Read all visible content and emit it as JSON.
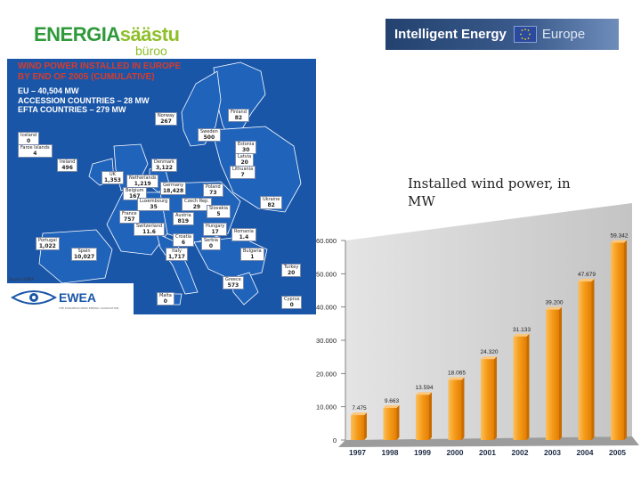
{
  "logos": {
    "energia_main_a": "ENERGIA",
    "energia_main_b": "säästu",
    "energia_sub": "büroo",
    "iee_part1": "Intelligent Energy",
    "iee_part2": "Europe"
  },
  "map": {
    "title_line1": "WIND POWER INSTALLED IN EUROPE",
    "title_line2": "BY END OF 2005 (CUMULATIVE)",
    "stat_eu": "EU – 40,504 MW",
    "stat_accession": "ACCESSION COUNTRIES – 28 MW",
    "stat_efta": "EFTA COUNTRIES – 279 MW",
    "source": "Source: EWEA",
    "ewea_name": "EWEA",
    "ewea_tagline": "THE EUROPEAN WIND ENERGY ASSOCIATION",
    "countries": [
      {
        "name": "Finland",
        "value": "82"
      },
      {
        "name": "Norway",
        "value": "267"
      },
      {
        "name": "Sweden",
        "value": "500"
      },
      {
        "name": "Estonia",
        "value": "30"
      },
      {
        "name": "Latvia",
        "value": "20"
      },
      {
        "name": "Lithuania",
        "value": "7"
      },
      {
        "name": "Iceland",
        "value": "0"
      },
      {
        "name": "Faroe Islands",
        "value": "4"
      },
      {
        "name": "Ireland",
        "value": "496"
      },
      {
        "name": "UK",
        "value": "1,353"
      },
      {
        "name": "Denmark",
        "value": "3,122"
      },
      {
        "name": "Netherlands",
        "value": "1,219"
      },
      {
        "name": "Belgium",
        "value": "167"
      },
      {
        "name": "Germany",
        "value": "18,428"
      },
      {
        "name": "Poland",
        "value": "73"
      },
      {
        "name": "Czech Rep.",
        "value": "29"
      },
      {
        "name": "Slovakia",
        "value": "5"
      },
      {
        "name": "Ukraine",
        "value": "82"
      },
      {
        "name": "Luxembourg",
        "value": "35"
      },
      {
        "name": "France",
        "value": "757"
      },
      {
        "name": "Austria",
        "value": "819"
      },
      {
        "name": "Hungary",
        "value": "17"
      },
      {
        "name": "Romania",
        "value": "1.4"
      },
      {
        "name": "Switzerland",
        "value": "11.6"
      },
      {
        "name": "Croatia",
        "value": "6"
      },
      {
        "name": "Serbia",
        "value": "0"
      },
      {
        "name": "Portugal",
        "value": "1,022"
      },
      {
        "name": "Spain",
        "value": "10,027"
      },
      {
        "name": "Italy",
        "value": "1,717"
      },
      {
        "name": "Bulgaria",
        "value": "1"
      },
      {
        "name": "Turkey",
        "value": "20"
      },
      {
        "name": "Greece",
        "value": "573"
      },
      {
        "name": "Malta",
        "value": "0"
      },
      {
        "name": "Cyprus",
        "value": "0"
      }
    ]
  },
  "caption": "Installed wind power, in MW",
  "chart_data": {
    "type": "bar",
    "title": "",
    "xlabel": "",
    "ylabel": "",
    "categories": [
      "1997",
      "1998",
      "1999",
      "2000",
      "2001",
      "2002",
      "2003",
      "2004",
      "2005"
    ],
    "values": [
      7475,
      9663,
      13594,
      18065,
      24320,
      31133,
      39200,
      47679,
      59342
    ],
    "value_labels": [
      "7.475",
      "9.663",
      "13.594",
      "18.065",
      "24.320",
      "31.133",
      "39.200",
      "47.679",
      "59.342"
    ],
    "y_ticks": [
      0,
      10000,
      20000,
      30000,
      40000,
      50000,
      60000
    ],
    "y_tick_labels": [
      "0",
      "10.000",
      "20.000",
      "30.000",
      "40.000",
      "50.000",
      "60.000"
    ],
    "ylim": [
      0,
      60000
    ],
    "grid": false,
    "colors": {
      "bar": "#f59a17",
      "bar_dark": "#c86c00",
      "floor": "#9c9c9c",
      "wall": "#d0d0d0"
    }
  }
}
